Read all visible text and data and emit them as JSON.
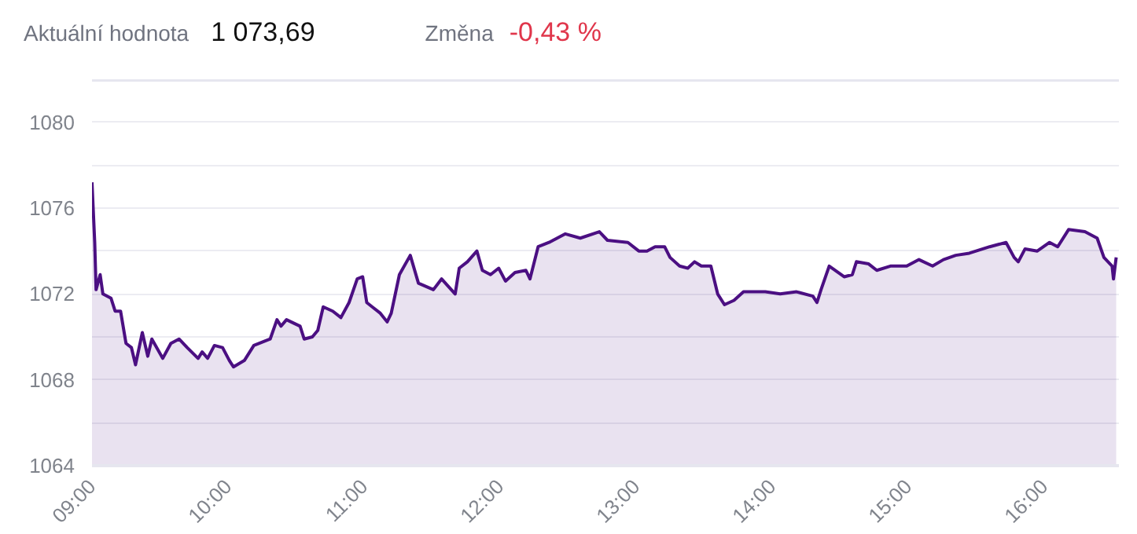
{
  "chart_data": {
    "type": "area",
    "annotations": [
      "Aktuální hodnota",
      "1 073,69",
      "Změna",
      "-0,43 %"
    ],
    "x": [
      9.0,
      9.02,
      9.03,
      9.06,
      9.08,
      9.14,
      9.17,
      9.21,
      9.25,
      9.29,
      9.32,
      9.37,
      9.41,
      9.44,
      9.52,
      9.58,
      9.64,
      9.7,
      9.78,
      9.81,
      9.85,
      9.9,
      9.96,
      10.01,
      10.04,
      10.12,
      10.19,
      10.31,
      10.36,
      10.39,
      10.43,
      10.53,
      10.56,
      10.62,
      10.66,
      10.7,
      10.77,
      10.83,
      10.89,
      10.95,
      10.99,
      11.02,
      11.06,
      11.12,
      11.17,
      11.2,
      11.26,
      11.34,
      11.4,
      11.51,
      11.57,
      11.67,
      11.7,
      11.76,
      11.83,
      11.87,
      11.93,
      11.99,
      12.04,
      12.11,
      12.19,
      12.22,
      12.28,
      12.36,
      12.42,
      12.48,
      12.59,
      12.73,
      12.79,
      12.94,
      13.02,
      13.08,
      13.14,
      13.21,
      13.25,
      13.32,
      13.38,
      13.43,
      13.48,
      13.55,
      13.6,
      13.65,
      13.72,
      13.79,
      13.95,
      14.06,
      14.18,
      14.3,
      14.33,
      14.36,
      14.42,
      14.53,
      14.59,
      14.62,
      14.71,
      14.77,
      14.87,
      14.99,
      15.08,
      15.18,
      15.26,
      15.35,
      15.45,
      15.6,
      15.72,
      15.78,
      15.81,
      15.86,
      15.95,
      16.04,
      16.1,
      16.18,
      16.3,
      16.39,
      16.44,
      16.5,
      16.51,
      16.53
    ],
    "series": [
      {
        "color": "#4b0f82",
        "values": [
          1077.2,
          1074.4,
          1072.2,
          1072.9,
          1072.0,
          1071.8,
          1071.2,
          1071.2,
          1069.7,
          1069.5,
          1068.7,
          1070.2,
          1069.1,
          1069.9,
          1069.0,
          1069.7,
          1069.9,
          1069.5,
          1069.0,
          1069.3,
          1069.0,
          1069.6,
          1069.5,
          1068.9,
          1068.6,
          1068.9,
          1069.6,
          1069.9,
          1070.8,
          1070.5,
          1070.8,
          1070.5,
          1069.9,
          1070.0,
          1070.3,
          1071.4,
          1071.2,
          1070.9,
          1071.6,
          1072.7,
          1072.8,
          1071.6,
          1071.4,
          1071.1,
          1070.7,
          1071.1,
          1072.9,
          1073.8,
          1072.5,
          1072.2,
          1072.7,
          1072.0,
          1073.2,
          1073.5,
          1074.0,
          1073.1,
          1072.9,
          1073.2,
          1072.6,
          1073.0,
          1073.1,
          1072.7,
          1074.2,
          1074.4,
          1074.6,
          1074.8,
          1074.6,
          1074.9,
          1074.5,
          1074.4,
          1074.0,
          1074.0,
          1074.2,
          1074.2,
          1073.7,
          1073.3,
          1073.2,
          1073.5,
          1073.3,
          1073.3,
          1072.0,
          1071.5,
          1071.7,
          1072.1,
          1072.1,
          1072.0,
          1072.1,
          1071.9,
          1071.6,
          1072.2,
          1073.3,
          1072.8,
          1072.9,
          1073.5,
          1073.4,
          1073.1,
          1073.3,
          1073.3,
          1073.6,
          1073.3,
          1073.6,
          1073.8,
          1073.9,
          1074.2,
          1074.4,
          1073.7,
          1073.5,
          1074.1,
          1074.0,
          1074.4,
          1074.2,
          1075.0,
          1074.9,
          1074.6,
          1073.7,
          1073.3,
          1072.7,
          1073.7
        ]
      }
    ],
    "xlim": [
      9,
      16.55
    ],
    "xticks": [
      {
        "value": 9,
        "label": "09:00"
      },
      {
        "value": 10,
        "label": "10:00"
      },
      {
        "value": 11,
        "label": "11:00"
      },
      {
        "value": 12,
        "label": "12:00"
      },
      {
        "value": 13,
        "label": "13:00"
      },
      {
        "value": 14,
        "label": "14:00"
      },
      {
        "value": 15,
        "label": "15:00"
      },
      {
        "value": 16,
        "label": "16:00"
      }
    ],
    "ylim": [
      1064,
      1082
    ],
    "yticks": [
      1064,
      {
        "value": 1066,
        "label": null
      },
      1068,
      {
        "value": 1070,
        "label": null
      },
      1072,
      {
        "value": 1074,
        "label": null
      },
      1076,
      {
        "value": 1078,
        "label": null
      },
      1080,
      {
        "value": 1082,
        "label": null
      }
    ],
    "grid": "y"
  }
}
